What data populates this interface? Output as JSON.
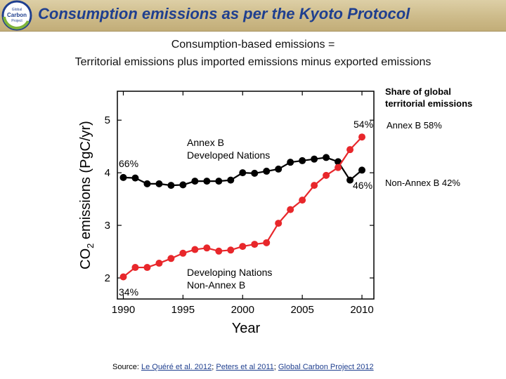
{
  "header": {
    "title": "Consumption emissions as per the Kyoto Protocol",
    "logo_text": [
      "Global",
      "Carbon",
      "Project"
    ]
  },
  "subtitle": {
    "line1": "Consumption-based emissions =",
    "line2": "Territorial emissions plus imported emissions minus exported emissions"
  },
  "share_panel": {
    "title_line1": "Share of global",
    "title_line2": "territorial emissions",
    "annex_b": "Annex B 58%",
    "non_annex_b": "Non-Annex B 42%"
  },
  "source": {
    "prefix": "Source: ",
    "links": [
      "Le Quéré et al. 2012",
      "Peters et al 2011",
      "Global Carbon Project 2012"
    ],
    "separator": "; "
  },
  "colors": {
    "header_title": "#1f3f8f",
    "annex_b": "#000000",
    "non_annex_b": "#e8272b"
  },
  "chart_data": {
    "type": "line",
    "title": "",
    "xlabel": "Year",
    "ylabel": "CO2 emissions (PgC/yr)",
    "x": [
      1990,
      1991,
      1992,
      1993,
      1994,
      1995,
      1996,
      1997,
      1998,
      1999,
      2000,
      2001,
      2002,
      2003,
      2004,
      2005,
      2006,
      2007,
      2008,
      2009,
      2010
    ],
    "xlim": [
      1989.5,
      2011
    ],
    "ylim": [
      1.6,
      5.55
    ],
    "xticks": [
      1990,
      1995,
      2000,
      2005,
      2010
    ],
    "yticks": [
      2,
      3,
      4,
      5
    ],
    "series": [
      {
        "name": "Annex B",
        "label_lines": [
          "Annex B",
          "Developed Nations"
        ],
        "start_share": "66%",
        "end_share": "46%",
        "color": "#000000",
        "values": [
          3.91,
          3.9,
          3.79,
          3.79,
          3.76,
          3.77,
          3.84,
          3.84,
          3.84,
          3.86,
          4.0,
          3.99,
          4.03,
          4.07,
          4.2,
          4.23,
          4.26,
          4.29,
          4.21,
          3.86,
          4.05
        ]
      },
      {
        "name": "Non-Annex B",
        "label_lines": [
          "Developing Nations",
          "Non-Annex B"
        ],
        "start_share": "34%",
        "end_share": "54%",
        "color": "#e8272b",
        "values": [
          2.02,
          2.2,
          2.2,
          2.28,
          2.37,
          2.47,
          2.54,
          2.57,
          2.51,
          2.53,
          2.6,
          2.64,
          2.67,
          3.04,
          3.3,
          3.48,
          3.76,
          3.95,
          4.1,
          4.44,
          4.68
        ]
      }
    ]
  }
}
